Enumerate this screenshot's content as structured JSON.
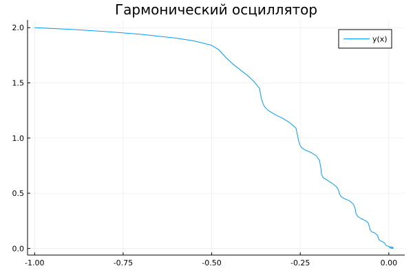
{
  "chart_data": {
    "type": "line",
    "title": "Гармонический осциллятор",
    "xlabel": "",
    "ylabel": "",
    "xlim": [
      -1.02,
      0.045
    ],
    "ylim": [
      -0.06,
      2.07
    ],
    "xticks": [
      -1.0,
      -0.75,
      -0.5,
      -0.25,
      0.0
    ],
    "xtick_labels": [
      "-1.00",
      "-0.75",
      "-0.50",
      "-0.25",
      "0.00"
    ],
    "yticks": [
      0.0,
      0.5,
      1.0,
      1.5,
      2.0
    ],
    "ytick_labels": [
      "0.0",
      "0.5",
      "1.0",
      "1.5",
      "2.0"
    ],
    "grid": true,
    "legend": {
      "position": "top-right"
    },
    "series": [
      {
        "name": "y(x)",
        "color": "#009af9",
        "x": [
          -1.0,
          -0.9,
          -0.8,
          -0.7,
          -0.6,
          -0.55,
          -0.5,
          -0.48,
          -0.46,
          -0.44,
          -0.42,
          -0.4,
          -0.38,
          -0.365,
          -0.36,
          -0.355,
          -0.35,
          -0.34,
          -0.32,
          -0.3,
          -0.28,
          -0.262,
          -0.258,
          -0.255,
          -0.252,
          -0.25,
          -0.245,
          -0.235,
          -0.22,
          -0.205,
          -0.196,
          -0.192,
          -0.19,
          -0.185,
          -0.175,
          -0.16,
          -0.148,
          -0.142,
          -0.14,
          -0.135,
          -0.125,
          -0.11,
          -0.1,
          -0.095,
          -0.093,
          -0.088,
          -0.078,
          -0.065,
          -0.058,
          -0.055,
          -0.053,
          -0.048,
          -0.04,
          -0.032,
          -0.03,
          -0.028,
          -0.024,
          -0.018,
          -0.012,
          -0.01,
          -0.009,
          -0.006,
          -0.002,
          0.003,
          0.004,
          0.004,
          0.002,
          0.006,
          0.01,
          0.008,
          0.006,
          0.009,
          0.012,
          0.01,
          0.009,
          0.011,
          0.013,
          0.012,
          0.012
        ],
        "y": [
          2.0,
          1.985,
          1.965,
          1.94,
          1.905,
          1.88,
          1.84,
          1.8,
          1.73,
          1.67,
          1.62,
          1.57,
          1.51,
          1.45,
          1.36,
          1.31,
          1.28,
          1.25,
          1.21,
          1.18,
          1.14,
          1.09,
          1.03,
          0.98,
          0.95,
          0.93,
          0.91,
          0.89,
          0.87,
          0.84,
          0.8,
          0.73,
          0.67,
          0.64,
          0.62,
          0.59,
          0.56,
          0.53,
          0.5,
          0.47,
          0.45,
          0.43,
          0.4,
          0.36,
          0.32,
          0.29,
          0.27,
          0.25,
          0.23,
          0.2,
          0.17,
          0.15,
          0.14,
          0.12,
          0.1,
          0.08,
          0.07,
          0.06,
          0.05,
          0.04,
          0.03,
          0.025,
          0.02,
          0.015,
          0.01,
          0.005,
          0.01,
          0.015,
          0.01,
          0.005,
          0.0,
          0.005,
          0.01,
          0.005,
          0.0,
          0.005,
          0.0,
          0.002,
          0.0
        ]
      }
    ]
  }
}
